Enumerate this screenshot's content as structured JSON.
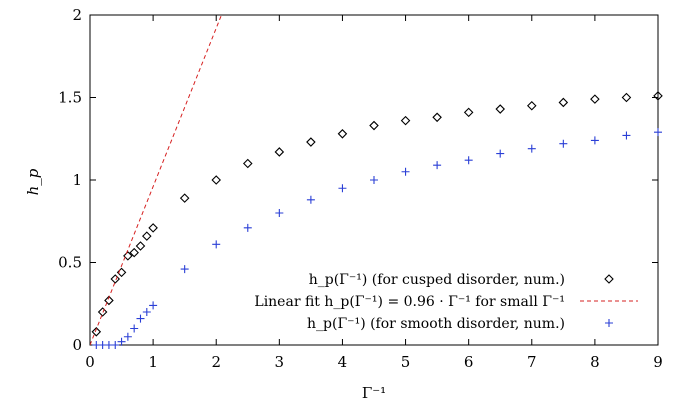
{
  "chart_data": {
    "type": "scatter",
    "xlabel": "Γ⁻¹",
    "ylabel": "h_p",
    "xlim": [
      0,
      9
    ],
    "ylim": [
      0,
      2
    ],
    "xticks": [
      "0",
      "1",
      "2",
      "3",
      "4",
      "5",
      "6",
      "7",
      "8",
      "9"
    ],
    "yticks": [
      "0",
      "0.5",
      "1",
      "1.5",
      "2"
    ],
    "legend_position": "bottom-right",
    "series": [
      {
        "name": "h_p(Γ⁻¹) (for cusped disorder, num.)",
        "marker": "diamond",
        "color": "#000000",
        "x": [
          0.1,
          0.2,
          0.3,
          0.4,
          0.5,
          0.6,
          0.7,
          0.8,
          0.9,
          1.0,
          1.5,
          2.0,
          2.5,
          3.0,
          3.5,
          4.0,
          4.5,
          5.0,
          5.5,
          6.0,
          6.5,
          7.0,
          7.5,
          8.0,
          8.5,
          9.0
        ],
        "y": [
          0.08,
          0.2,
          0.27,
          0.4,
          0.44,
          0.54,
          0.56,
          0.6,
          0.66,
          0.71,
          0.89,
          1.0,
          1.1,
          1.17,
          1.23,
          1.28,
          1.33,
          1.36,
          1.38,
          1.41,
          1.43,
          1.45,
          1.47,
          1.49,
          1.5,
          1.51
        ]
      },
      {
        "name": "Linear fit h_p(Γ⁻¹) = 0.96 · Γ⁻¹ for small Γ⁻¹",
        "line": "dashed",
        "color": "#d62020",
        "slope": 0.96,
        "x": [
          0,
          2.083
        ],
        "y": [
          0,
          2.0
        ]
      },
      {
        "name": "h_p(Γ⁻¹) (for smooth disorder, num.)",
        "marker": "plus",
        "color": "#2a3fd6",
        "x": [
          0.1,
          0.2,
          0.3,
          0.4,
          0.5,
          0.6,
          0.7,
          0.8,
          0.9,
          1.0,
          1.5,
          2.0,
          2.5,
          3.0,
          3.5,
          4.0,
          4.5,
          5.0,
          5.5,
          6.0,
          6.5,
          7.0,
          7.5,
          8.0,
          8.5,
          9.0
        ],
        "y": [
          0.0,
          0.0,
          0.0,
          0.0,
          0.02,
          0.05,
          0.1,
          0.16,
          0.2,
          0.24,
          0.46,
          0.61,
          0.71,
          0.8,
          0.88,
          0.95,
          1.0,
          1.05,
          1.09,
          1.12,
          1.16,
          1.19,
          1.22,
          1.24,
          1.27,
          1.29
        ]
      }
    ]
  }
}
